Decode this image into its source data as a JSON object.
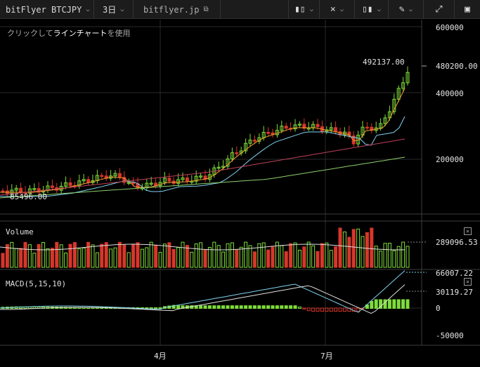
{
  "toolbar": {
    "symbol": "bitFlyer BTCJPY",
    "interval": "3日",
    "site": "bitflyer.jp",
    "icons": {
      "chart_type": "candlestick-icon",
      "compare": "compare-icon",
      "indicators": "indicators-icon",
      "draw": "pencil-icon",
      "fullscreen": "fullscreen-icon",
      "snapshot": "snapshot-icon"
    }
  },
  "hint": {
    "prefix": "クリックして",
    "emphasis": "ラインチャート",
    "suffix": "を使用"
  },
  "price_pane": {
    "last_price_label": "492137.00",
    "low_label": "85496.00",
    "axis_labels": [
      "600000",
      "480200.00",
      "400000",
      "200000"
    ]
  },
  "volume_pane": {
    "title": "Volume",
    "axis_label": "289096.53"
  },
  "macd_pane": {
    "title": "MACD(5,15,10)",
    "axis_labels": [
      "66007.22",
      "30119.27",
      "0",
      "-50000"
    ]
  },
  "time_axis": {
    "labels": [
      "4月",
      "7月"
    ]
  },
  "colors": {
    "up": "#7fdc3a",
    "down": "#d8362b",
    "ma_fast": "#f0a030",
    "ma_mid": "#7fd3f0",
    "ma_slow": "#c0405a",
    "ma_long": "#8ccf6a",
    "macd_line": "#7fd3f0",
    "signal_line": "#e0e0e0"
  }
}
